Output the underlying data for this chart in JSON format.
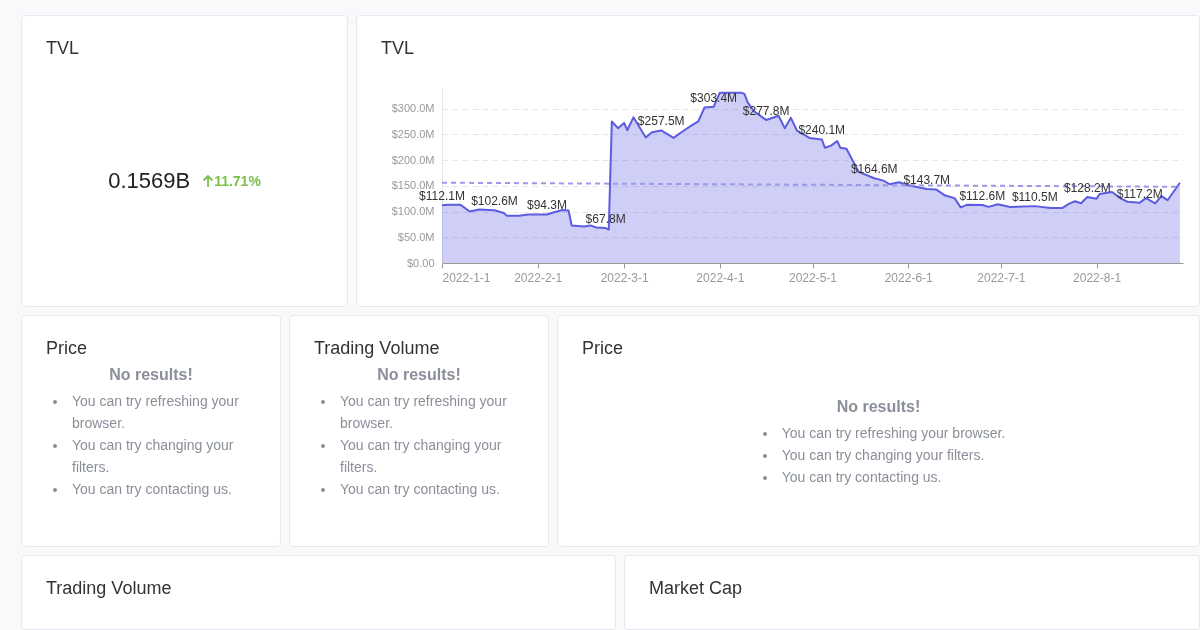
{
  "chart_data": [
    {
      "type": "other",
      "title": "TVL",
      "annotations": [
        "0.1569B",
        "11.71%"
      ]
    },
    {
      "type": "area",
      "title": "TVL",
      "xlim": [
        "2022-01-01",
        "2022-08-29"
      ],
      "xticks": [
        {
          "value": "2022-01-01",
          "label": "2022-1-1"
        },
        {
          "value": "2022-02-01",
          "label": "2022-2-1"
        },
        {
          "value": "2022-03-01",
          "label": "2022-3-1"
        },
        {
          "value": "2022-04-01",
          "label": "2022-4-1"
        },
        {
          "value": "2022-05-01",
          "label": "2022-5-1"
        },
        {
          "value": "2022-06-01",
          "label": "2022-6-1"
        },
        {
          "value": "2022-07-01",
          "label": "2022-7-1"
        },
        {
          "value": "2022-08-01",
          "label": "2022-8-1"
        }
      ],
      "ylim": [
        0,
        340
      ],
      "yticks": [
        {
          "value": 0,
          "label": "$0.00"
        },
        {
          "value": 50,
          "label": "$50.0M"
        },
        {
          "value": 100,
          "label": "$100.0M"
        },
        {
          "value": 150,
          "label": "$150.0M"
        },
        {
          "value": 200,
          "label": "$200.0M"
        },
        {
          "value": 250,
          "label": "$250.0M"
        },
        {
          "value": 300,
          "label": "$300.0M"
        }
      ],
      "grid": "y",
      "series": [
        {
          "type": "area",
          "color": "#5c5ce0",
          "x": [
            "2022-01-01",
            "2022-01-03",
            "2022-01-07",
            "2022-01-10",
            "2022-01-13",
            "2022-01-18",
            "2022-01-21",
            "2022-01-22",
            "2022-01-26",
            "2022-01-29",
            "2022-02-04",
            "2022-02-06",
            "2022-02-09",
            "2022-02-11",
            "2022-02-12",
            "2022-02-16",
            "2022-02-18",
            "2022-02-20",
            "2022-02-23",
            "2022-02-24",
            "2022-02-25",
            "2022-02-27",
            "2022-03-01",
            "2022-03-02",
            "2022-03-04",
            "2022-03-08",
            "2022-03-10",
            "2022-03-13",
            "2022-03-17",
            "2022-03-20",
            "2022-03-23",
            "2022-03-25",
            "2022-03-27",
            "2022-03-30",
            "2022-04-01",
            "2022-04-08",
            "2022-04-09",
            "2022-04-10",
            "2022-04-12",
            "2022-04-16",
            "2022-04-20",
            "2022-04-22",
            "2022-04-24",
            "2022-04-26",
            "2022-04-30",
            "2022-05-04",
            "2022-05-05",
            "2022-05-07",
            "2022-05-09",
            "2022-05-10",
            "2022-05-12",
            "2022-05-14",
            "2022-05-16",
            "2022-05-21",
            "2022-05-24",
            "2022-05-26",
            "2022-05-29",
            "2022-06-01",
            "2022-06-07",
            "2022-06-10",
            "2022-06-13",
            "2022-06-16",
            "2022-06-18",
            "2022-06-20",
            "2022-06-25",
            "2022-06-27",
            "2022-06-30",
            "2022-07-04",
            "2022-07-12",
            "2022-07-17",
            "2022-07-21",
            "2022-07-23",
            "2022-07-25",
            "2022-07-27",
            "2022-07-29",
            "2022-08-01",
            "2022-08-02",
            "2022-08-06",
            "2022-08-09",
            "2022-08-11",
            "2022-08-15",
            "2022-08-17",
            "2022-08-20",
            "2022-08-22",
            "2022-08-24",
            "2022-08-28"
          ],
          "values": [
            112.1,
            113,
            113,
            100,
            104,
            102.6,
            97,
            92,
            92,
            94,
            94.3,
            98,
            103,
            102,
            73,
            71,
            73,
            69,
            67.8,
            65,
            275,
            262,
            272,
            258,
            283,
            244,
            254,
            257.5,
            243,
            256,
            268,
            275,
            302,
            303.4,
            331,
            331,
            328,
            312,
            295,
            277.8,
            286,
            262,
            282,
            257,
            243,
            240.1,
            224,
            228,
            237,
            224,
            222,
            199,
            177,
            164.6,
            160,
            153,
            157,
            151,
            143.7,
            143,
            131,
            126,
            108,
            113,
            112.6,
            109,
            114,
            109,
            110.5,
            107,
            107,
            115,
            120,
            116,
            128.2,
            125,
            134,
            138,
            125,
            119,
            117.2,
            126,
            116,
            130,
            122,
            156
          ]
        },
        {
          "type": "line",
          "color": "#9d99ea",
          "line_style": "dashed",
          "x": [
            "2022-01-01",
            "2022-08-28"
          ],
          "values": [
            156,
            148
          ]
        }
      ],
      "annotations": [
        {
          "text": "$112.1M",
          "x": "2022-01-01",
          "y": 112.1
        },
        {
          "text": "$102.6M",
          "x": "2022-01-18",
          "y": 102.6
        },
        {
          "text": "$94.3M",
          "x": "2022-02-04",
          "y": 94.3
        },
        {
          "text": "$67.8M",
          "x": "2022-02-23",
          "y": 67.8
        },
        {
          "text": "$257.5M",
          "x": "2022-03-13",
          "y": 257.5
        },
        {
          "text": "$303.4M",
          "x": "2022-03-30",
          "y": 303.4
        },
        {
          "text": "$277.8M",
          "x": "2022-04-16",
          "y": 277.8
        },
        {
          "text": "$240.1M",
          "x": "2022-05-04",
          "y": 240.1
        },
        {
          "text": "$164.6M",
          "x": "2022-05-21",
          "y": 164.6
        },
        {
          "text": "$143.7M",
          "x": "2022-06-07",
          "y": 143.7
        },
        {
          "text": "$112.6M",
          "x": "2022-06-25",
          "y": 112.6
        },
        {
          "text": "$110.5M",
          "x": "2022-07-12",
          "y": 110.5
        },
        {
          "text": "$128.2M",
          "x": "2022-07-29",
          "y": 128.2
        },
        {
          "text": "$117.2M",
          "x": "2022-08-15",
          "y": 117.2
        }
      ]
    },
    {
      "type": "other",
      "title": "Price",
      "annotations": [
        "No results!",
        "You can try refreshing your browser.",
        "You can try changing your filters.",
        "You can try contacting us."
      ]
    },
    {
      "type": "other",
      "title": "Trading Volume",
      "annotations": [
        "No results!",
        "You can try refreshing your browser.",
        "You can try changing your filters.",
        "You can try contacting us."
      ]
    },
    {
      "type": "other",
      "title": "Price",
      "annotations": [
        "No results!",
        "You can try refreshing your browser.",
        "You can try changing your filters.",
        "You can try contacting us."
      ]
    },
    {
      "type": "other",
      "title": "Trading Volume"
    },
    {
      "type": "other",
      "title": "Market Cap"
    }
  ]
}
